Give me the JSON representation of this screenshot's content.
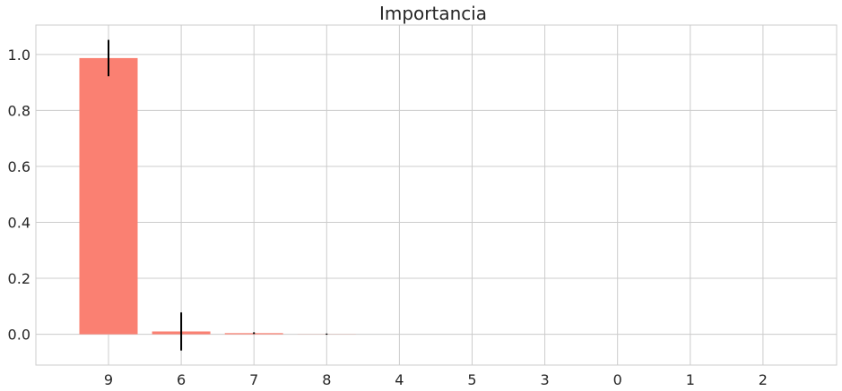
{
  "chart_data": {
    "type": "bar",
    "title": "Importancia",
    "xlabel": "",
    "ylabel": "",
    "categories": [
      "9",
      "6",
      "7",
      "8",
      "4",
      "5",
      "3",
      "0",
      "1",
      "2"
    ],
    "values": [
      0.987,
      0.01,
      0.004,
      0.0005,
      0.0,
      0.0,
      0.0,
      0.0,
      0.0,
      0.0
    ],
    "errors": [
      0.065,
      0.068,
      0.003,
      0.002,
      0.0,
      0.0,
      0.0,
      0.0,
      0.0,
      0.0
    ],
    "ylim": [
      -0.11,
      1.105
    ],
    "yticks": [
      "0.0",
      "0.2",
      "0.4",
      "0.6",
      "0.8",
      "1.0"
    ],
    "ytick_values": [
      0.0,
      0.2,
      0.4,
      0.6,
      0.8,
      1.0
    ],
    "grid": true,
    "bar_color": "#fa8072",
    "error_color": "#000000",
    "grid_color": "#cccccc"
  }
}
